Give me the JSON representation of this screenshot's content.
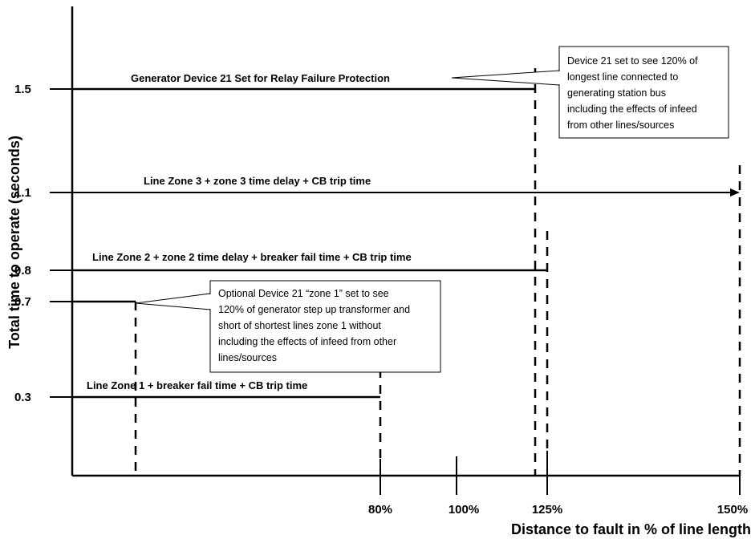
{
  "axes": {
    "y_label": "Total time to operate (seconds)",
    "x_label": "Distance to fault in % of line length",
    "y_ticks": [
      "1.5",
      "1.1",
      "0.8",
      "0.7",
      "0.3"
    ],
    "x_ticks": [
      "80%",
      "100%",
      "125%",
      "150%"
    ]
  },
  "lines": {
    "generator_device21": "Generator Device 21 Set for Relay Failure Protection",
    "zone3": "Line Zone 3 + zone 3  time delay + CB trip time",
    "zone2": "Line Zone 2 + zone 2 time delay + breaker fail time + CB trip time",
    "zone1": "Line Zone 1 + breaker fail time + CB trip time"
  },
  "callouts": {
    "top": [
      "Device 21 set to see 120% of",
      "longest line connected to",
      "generating station bus",
      "including the effects of infeed",
      "from other lines/sources"
    ],
    "middle": [
      "Optional Device 21 “zone 1” set to see",
      "120% of generator step up transformer and",
      "short of shortest lines zone 1 without",
      "including the effects of infeed from other",
      "lines/sources"
    ]
  }
}
